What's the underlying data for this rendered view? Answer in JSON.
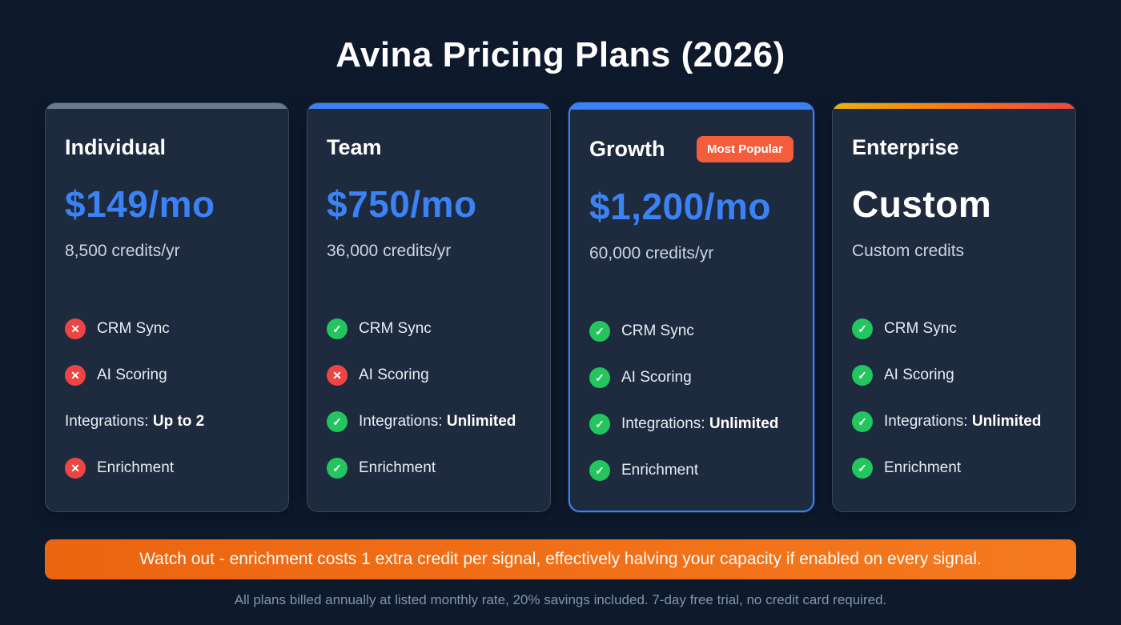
{
  "title": "Avina Pricing Plans (2026)",
  "colors": {
    "background": "#0e1a2c",
    "card_background": "#1e2b3f",
    "accent_blue": "#3b82f6",
    "check_green": "#22c55e",
    "cross_red": "#ef4444",
    "badge_orange": "#f45d3b",
    "warning_orange": "#f1711f"
  },
  "plans": [
    {
      "name": "Individual",
      "badge": "",
      "price": "$149/mo",
      "credits": "8,500 credits/yr",
      "accent": "gray",
      "highlight": "false",
      "features": [
        {
          "icon": "cross",
          "label": "CRM Sync",
          "bold": ""
        },
        {
          "icon": "cross",
          "label": "AI Scoring",
          "bold": ""
        },
        {
          "icon": "none",
          "label": "Integrations: ",
          "bold": "Up to 2"
        },
        {
          "icon": "cross",
          "label": "Enrichment",
          "bold": ""
        }
      ]
    },
    {
      "name": "Team",
      "badge": "",
      "price": "$750/mo",
      "credits": "36,000 credits/yr",
      "accent": "blue",
      "highlight": "false",
      "features": [
        {
          "icon": "check",
          "label": "CRM Sync",
          "bold": ""
        },
        {
          "icon": "cross",
          "label": "AI Scoring",
          "bold": ""
        },
        {
          "icon": "check",
          "label": "Integrations: ",
          "bold": "Unlimited"
        },
        {
          "icon": "check",
          "label": "Enrichment",
          "bold": ""
        }
      ]
    },
    {
      "name": "Growth",
      "badge": "Most Popular",
      "price": "$1,200/mo",
      "credits": "60,000 credits/yr",
      "accent": "blue",
      "highlight": "true",
      "features": [
        {
          "icon": "check",
          "label": "CRM Sync",
          "bold": ""
        },
        {
          "icon": "check",
          "label": "AI Scoring",
          "bold": ""
        },
        {
          "icon": "check",
          "label": "Integrations: ",
          "bold": "Unlimited"
        },
        {
          "icon": "check",
          "label": "Enrichment",
          "bold": ""
        }
      ]
    },
    {
      "name": "Enterprise",
      "badge": "",
      "price": "Custom",
      "credits": "Custom credits",
      "accent": "gradient",
      "highlight": "false",
      "features": [
        {
          "icon": "check",
          "label": "CRM Sync",
          "bold": ""
        },
        {
          "icon": "check",
          "label": "AI Scoring",
          "bold": ""
        },
        {
          "icon": "check",
          "label": "Integrations: ",
          "bold": "Unlimited"
        },
        {
          "icon": "check",
          "label": "Enrichment",
          "bold": ""
        }
      ]
    }
  ],
  "warning": "Watch out - enrichment costs 1 extra credit per signal, effectively halving your capacity if enabled on every signal.",
  "footnote": "All plans billed annually at listed monthly rate, 20% savings included. 7-day free trial, no credit card required."
}
